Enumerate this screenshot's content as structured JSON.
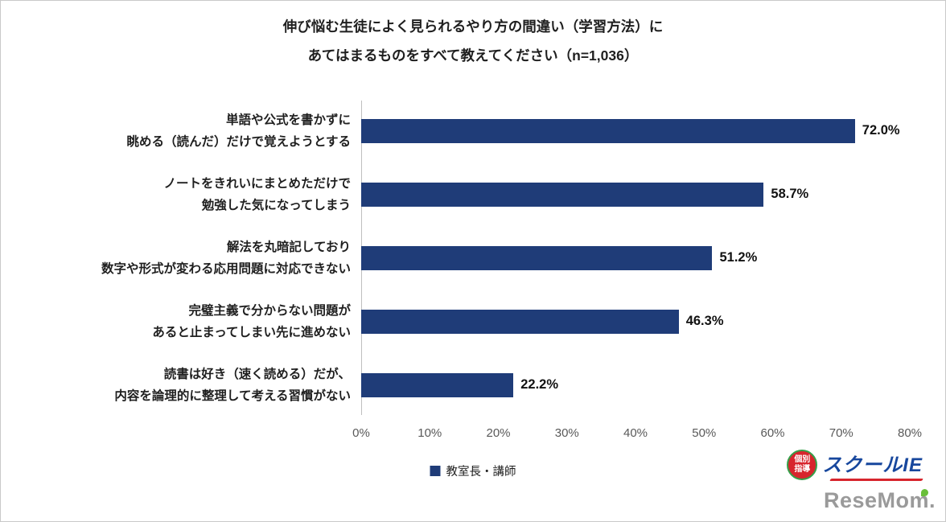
{
  "title": {
    "line1": "伸び悩む生徒によく見られるやり方の間違い（学習方法）に",
    "line2": "あてはまるものをすべて教えてください（n=1,036）"
  },
  "chart_data": {
    "type": "bar",
    "orientation": "horizontal",
    "title": "伸び悩む生徒によく見られるやり方の間違い（学習方法）にあてはまるものをすべて教えてください（n=1,036）",
    "categories": [
      [
        "単語や公式を書かずに",
        "眺める（読んだ）だけで覚えようとする"
      ],
      [
        "ノートをきれいにまとめただけで",
        "勉強した気になってしまう"
      ],
      [
        "解法を丸暗記しており",
        "数字や形式が変わる応用問題に対応できない"
      ],
      [
        "完璧主義で分からない問題が",
        "あると止まってしまい先に進めない"
      ],
      [
        "読書は好き（速く読める）だが、",
        "内容を論理的に整理して考える習慣がない"
      ]
    ],
    "values": [
      72.0,
      58.7,
      51.2,
      46.3,
      22.2
    ],
    "value_labels": [
      "72.0%",
      "58.7%",
      "51.2%",
      "46.3%",
      "22.2%"
    ],
    "xlim": [
      0,
      80
    ],
    "x_ticks": [
      "0%",
      "10%",
      "20%",
      "30%",
      "40%",
      "50%",
      "60%",
      "70%",
      "80%"
    ],
    "xlabel": "",
    "ylabel": "",
    "grid": false,
    "legend_position": "bottom",
    "series_name": "教室長・講師",
    "bar_color": "#1f3c78"
  },
  "legend": {
    "label": "教室長・講師",
    "color": "#1f3c78"
  },
  "logos": {
    "school_ie": {
      "badge_line1": "個別",
      "badge_line2": "指導",
      "name": "スクールIE"
    },
    "resemom": "ReseMom."
  }
}
